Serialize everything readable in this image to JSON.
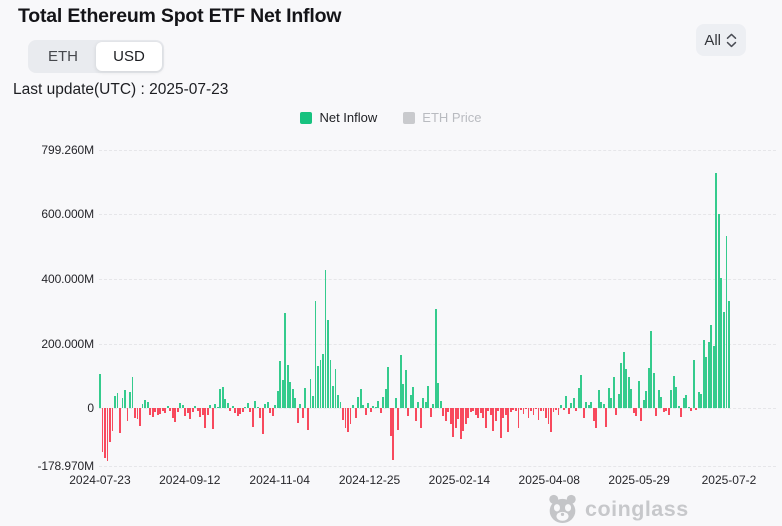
{
  "page": {
    "background": "#f8f8fa"
  },
  "header": {
    "title": "Total Ethereum Spot ETF Net Inflow",
    "unit_toggle": {
      "options": [
        "ETH",
        "USD"
      ],
      "selected": "USD"
    },
    "range_select": {
      "value": "All"
    },
    "last_update": "Last update(UTC) : 2025-07-23"
  },
  "legend": {
    "items": [
      {
        "label": "Net Inflow",
        "color": "#17c27f",
        "active": true,
        "swatch_style": "background:#17c27f"
      },
      {
        "label": "ETH Price",
        "color": "#c9cacd",
        "active": false,
        "swatch_style": "background:#c9cacd"
      }
    ]
  },
  "watermark": {
    "text": "coinglass"
  },
  "chart_data": {
    "type": "bar",
    "title": "Total Ethereum Spot ETF Net Inflow",
    "series_name": "Net Inflow",
    "unit": "USD millions per day",
    "grid": "dashed horizontal",
    "legend_position": "top-center",
    "y_max": 799.26,
    "y_min": -178.97,
    "y_ticks": [
      {
        "label": "799.260M",
        "value": 799.26
      },
      {
        "label": "600.000M",
        "value": 600
      },
      {
        "label": "400.000M",
        "value": 400
      },
      {
        "label": "200.000M",
        "value": 200
      },
      {
        "label": "0",
        "value": 0
      },
      {
        "label": "-178.970M",
        "value": -178.97
      }
    ],
    "x_labels": [
      "2024-07-23",
      "2024-09-12",
      "2024-11-04",
      "2024-12-25",
      "2025-02-14",
      "2025-04-08",
      "2025-05-29",
      "2025-07-2"
    ],
    "start_date": "2024-07-23",
    "end_date": "2025-07-23",
    "positive_color": "#35cb8d",
    "negative_color": "#f8495d",
    "values_note": "daily net inflow in USD millions, estimated from chart",
    "values": [
      107,
      -136,
      -155,
      -165,
      -106,
      -72,
      38,
      48,
      -78,
      31,
      55,
      -39,
      51,
      98,
      -29,
      -35,
      -54,
      12,
      25,
      18,
      -20,
      -28,
      -12,
      -22,
      -18,
      -10,
      -14,
      8,
      -8,
      -30,
      -44,
      -12,
      15,
      10,
      -25,
      -15,
      -34,
      -12,
      8,
      -10,
      -28,
      -22,
      -60,
      -20,
      10,
      -65,
      12,
      5,
      58,
      66,
      28,
      15,
      -10,
      8,
      -15,
      -25,
      -18,
      -12,
      4,
      17,
      -12,
      -58,
      22,
      2,
      -31,
      -81,
      12,
      18,
      -14,
      -25,
      11,
      52,
      146,
      86,
      295,
      135,
      80,
      60,
      31,
      -45,
      14,
      -30,
      62,
      -68,
      90,
      38,
      332,
      130,
      150,
      167,
      428,
      274,
      149,
      68,
      120,
      40,
      20,
      -38,
      -60,
      -75,
      -50,
      9,
      -30,
      36,
      59,
      10,
      -20,
      15,
      -12,
      8,
      5,
      22,
      -15,
      36,
      59,
      129,
      -86,
      -159,
      30,
      -68,
      164,
      74,
      118,
      -25,
      40,
      67,
      -40,
      20,
      -60,
      30,
      20,
      68,
      -28,
      12,
      308,
      78,
      22,
      -23,
      -40,
      -11,
      -48,
      -90,
      -60,
      -35,
      -94,
      -71,
      -50,
      -30,
      -12,
      -8,
      -20,
      -30,
      -14,
      -30,
      -60,
      -10,
      -21,
      -70,
      -40,
      -10,
      -93,
      -30,
      -20,
      -73,
      -12,
      -5,
      -8,
      -60,
      -6,
      -18,
      -4,
      -30,
      -10,
      -22,
      -3,
      -37,
      -10,
      -8,
      -30,
      -50,
      -75,
      -12,
      -5,
      -20,
      10,
      -6,
      38,
      -18,
      15,
      30,
      -10,
      63,
      104,
      -30,
      20,
      10,
      20,
      -40,
      -60,
      55,
      18,
      13,
      -58,
      64,
      30,
      95,
      -20,
      45,
      140,
      175,
      120,
      95,
      60,
      -15,
      -24,
      85,
      -40,
      25,
      53,
      125,
      240,
      110,
      -25,
      55,
      35,
      -12,
      -8,
      -20,
      55,
      101,
      65,
      6,
      -26,
      31,
      41,
      2,
      -10,
      149,
      -5,
      50,
      45,
      211,
      158,
      204,
      259,
      192,
      727,
      602,
      403,
      297,
      534,
      332
    ]
  }
}
